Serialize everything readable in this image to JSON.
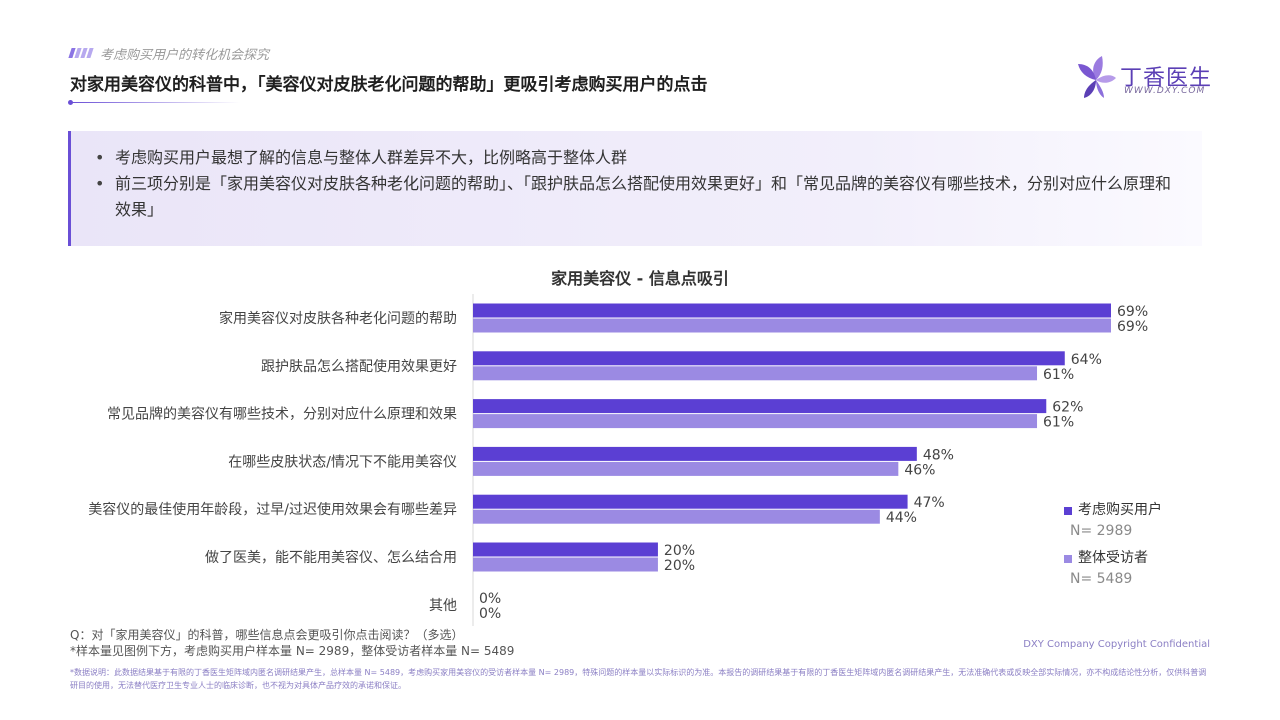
{
  "header": {
    "section_title": "考虑购买用户的转化机会探究",
    "page_title": "对家用美容仪的科普中，「美容仪对皮肤老化问题的帮助」更吸引考虑购买用户的点击"
  },
  "logo": {
    "name_cn": "丁香医生",
    "url_text": "WWW.DXY.COM"
  },
  "summary": {
    "bullets": [
      "考虑购买用户最想了解的信息与整体人群差异不大，比例略高于整体人群",
      "前三项分别是「家用美容仪对皮肤各种老化问题的帮助」、「跟护肤品怎么搭配使用效果更好」和「常见品牌的美容仪有哪些技术，分别对应什么原理和效果」"
    ]
  },
  "chart_data": {
    "type": "bar",
    "orientation": "horizontal",
    "title": "家用美容仪 - 信息点吸引",
    "categories": [
      "家用美容仪对皮肤各种老化问题的帮助",
      "跟护肤品怎么搭配使用效果更好",
      "常见品牌的美容仪有哪些技术，分别对应什么原理和效果",
      "在哪些皮肤状态/情况下不能用美容仪",
      "美容仪的最佳使用年龄段，过早/过迟使用效果会有哪些差异",
      "做了医美，能不能用美容仪、怎么结合用",
      "其他"
    ],
    "series": [
      {
        "name": "考虑购买用户",
        "n_label": "N= 2989",
        "color": "#5b3fd3",
        "values": [
          69,
          64,
          62,
          48,
          47,
          20,
          0
        ],
        "labels": [
          "69%",
          "64%",
          "62%",
          "48%",
          "47%",
          "20%",
          "0%"
        ]
      },
      {
        "name": "整体受访者",
        "n_label": "N= 5489",
        "color": "#9b8ae3",
        "values": [
          69,
          61,
          61,
          46,
          44,
          20,
          0
        ],
        "labels": [
          "69%",
          "61%",
          "61%",
          "46%",
          "44%",
          "20%",
          "0%"
        ]
      }
    ],
    "value_unit": "%",
    "legend_position": "right",
    "grid": false
  },
  "footer": {
    "question": "Q：对「家用美容仪」的科普，哪些信息点会更吸引你点击阅读？（多选）",
    "sample_note": "*样本量见图例下方，考虑购买用户样本量 N= 2989，整体受访者样本量 N= 5489",
    "copyright": "DXY Company Copyright Confidential",
    "disclaimer": "*数据说明：此数据结果基于有限的丁香医生矩阵域内匿名调研结果产生，总样本量 N= 5489，考虑购买家用美容仪的受访者样本量 N= 2989，特殊问题的样本量以实际标识的为准。本报告的调研结果基于有限的丁香医生矩阵域内匿名调研结果产生，无法准确代表或反映全部实际情况，亦不构成结论性分析，仅供科普调研目的使用，无法替代医疗卫生专业人士的临床诊断，也不视为对具体产品疗效的承诺和保证。"
  }
}
